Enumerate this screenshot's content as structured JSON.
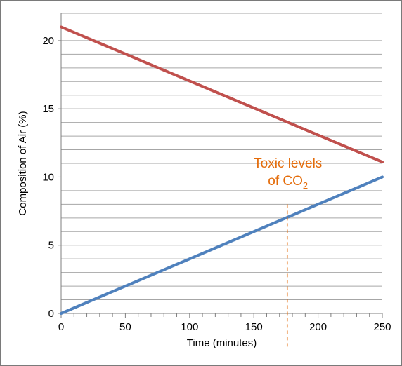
{
  "chart_data": {
    "type": "line",
    "xlabel": "Time (minutes)",
    "ylabel": "Composition of Air (%)",
    "xlim": [
      0,
      250
    ],
    "ylim": [
      0,
      22
    ],
    "x_ticks": [
      0,
      50,
      100,
      150,
      200,
      250
    ],
    "y_ticks": [
      0,
      5,
      10,
      15,
      20
    ],
    "y_minor_step": 1,
    "x_minor_step": 10,
    "grid": true,
    "series": [
      {
        "color": "#c0504d",
        "x": [
          0,
          250
        ],
        "values": [
          21,
          11.1
        ]
      },
      {
        "color": "#4f81bd",
        "x": [
          0,
          250
        ],
        "values": [
          0,
          10
        ]
      }
    ],
    "annotation": {
      "line1": "Toxic levels",
      "line2": "of CO",
      "subscript": "2",
      "x": 176,
      "y_top": 8,
      "color": "#e46c0a"
    }
  }
}
